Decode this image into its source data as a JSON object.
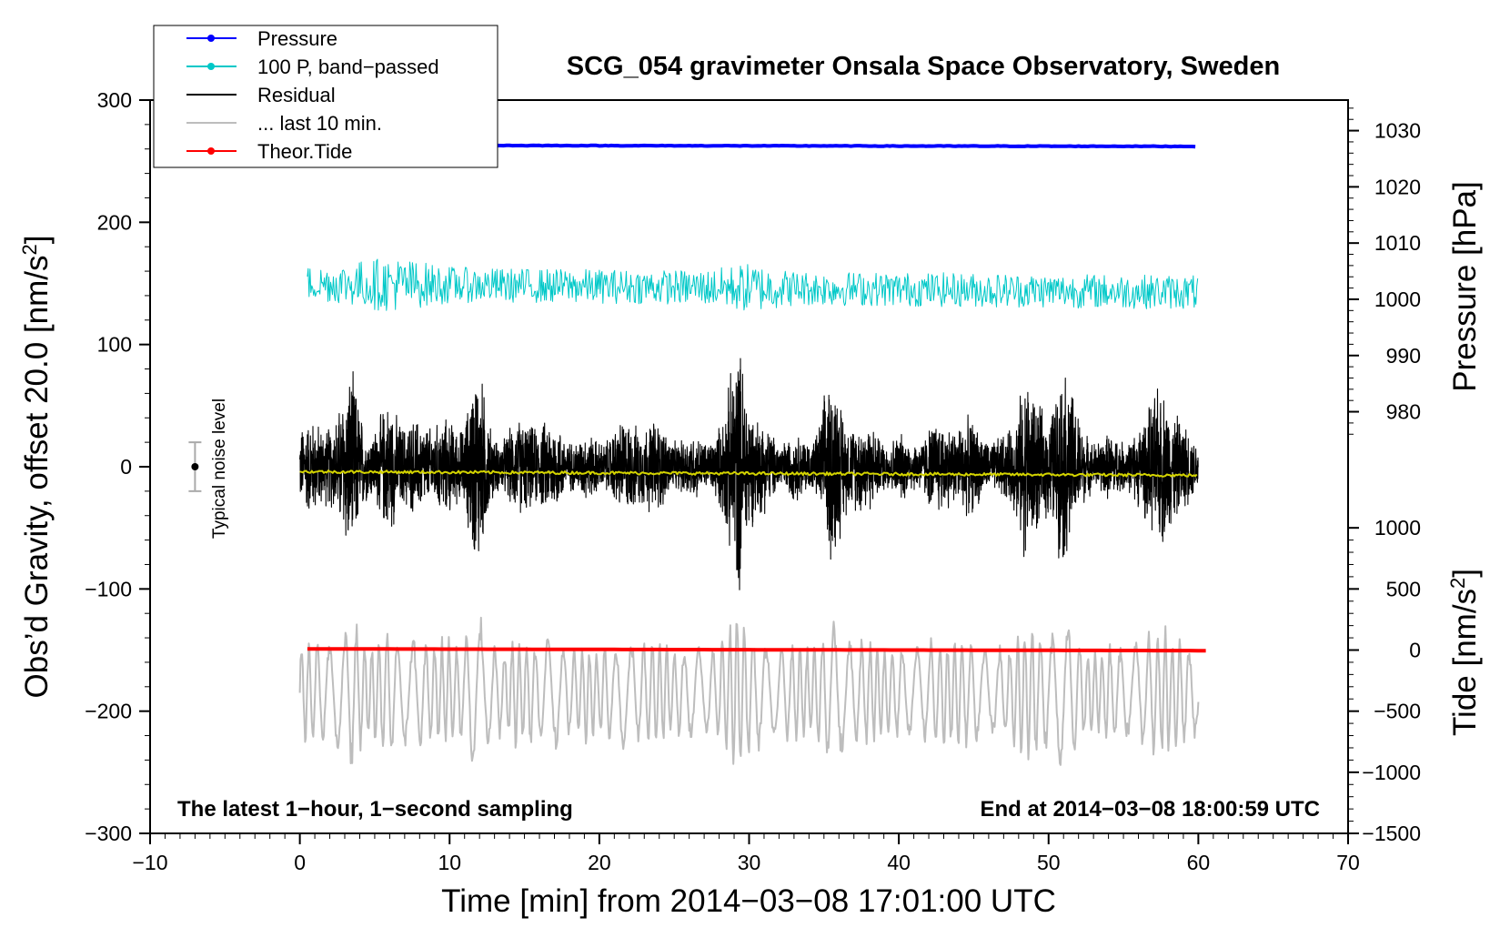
{
  "chart_data": {
    "type": "line",
    "title": "SCG_054 gravimeter Onsala Space Observatory, Sweden",
    "xlabel": "Time [min] from 2014−03−08 17:01:00 UTC",
    "ylabel_left": "Obs’d Gravity, offset 20.0 [nm/s²]",
    "ylabel_left_parts": {
      "main": "Obs’d Gravity, offset 20.0 [nm/s",
      "sup": "2",
      "end": "]"
    },
    "ylabel_right_pressure": "Pressure [hPa]",
    "ylabel_right_tide": "Tide [nm/s²]",
    "ylabel_right_tide_parts": {
      "main": "Tide [nm/s",
      "sup": "2",
      "end": "]"
    },
    "xlim": [
      -10,
      70
    ],
    "ylim": [
      -300,
      300
    ],
    "x_ticks": [
      -10,
      0,
      10,
      20,
      30,
      40,
      50,
      60,
      70
    ],
    "x_tick_labels": [
      "−10",
      "0",
      "10",
      "20",
      "30",
      "40",
      "50",
      "60",
      "70"
    ],
    "y_ticks": [
      300,
      200,
      100,
      0,
      -100,
      -200,
      -300
    ],
    "y_tick_labels": [
      "300",
      "200",
      "100",
      "0",
      "−100",
      "−200",
      "−300"
    ],
    "pressure_axis": {
      "ticks": [
        1030,
        1020,
        1010,
        1000,
        990,
        980
      ],
      "tick_labels": [
        "1030",
        "1020",
        "1010",
        "1000",
        "990",
        "980"
      ],
      "left_value_at_1030": 275,
      "left_units_per_hpa": 4.6
    },
    "tide_axis": {
      "ticks": [
        1000,
        500,
        0,
        -500,
        -1000,
        -1500
      ],
      "tick_labels": [
        "1000",
        "500",
        "0",
        "−500",
        "−1000",
        "−1500"
      ],
      "left_value_at_0": -150,
      "left_units_per_tide": 0.1
    },
    "legend": [
      {
        "label": "Pressure",
        "color": "#0000ff",
        "marker": true
      },
      {
        "label": "100 P, band−passed",
        "color": "#00c8c8",
        "marker": true
      },
      {
        "label": "Residual",
        "color": "#000000",
        "marker": false
      },
      {
        "label": "... last 10 min.",
        "color": "#bdbdbd",
        "marker": false
      },
      {
        "label": "Theor.Tide",
        "color": "#ff0000",
        "marker": true
      }
    ],
    "series": [
      {
        "name": "Pressure",
        "color": "#0000ff",
        "x_range": [
          0,
          60
        ],
        "values_hpa_start": 1027.4,
        "values_hpa_end": 1027.2
      },
      {
        "name": "100 P, band−passed",
        "color": "#00c8c8",
        "x_range": [
          0.5,
          60
        ],
        "center": 150,
        "amplitude": 20
      },
      {
        "name": "Residual",
        "color": "#000000",
        "x_range": [
          0,
          60
        ],
        "center": 0,
        "amplitude": 60
      },
      {
        "name": "Residual smoothed",
        "color": "#d4d400",
        "x_range": [
          0,
          60
        ],
        "center_start": -4,
        "center_end": -7
      },
      {
        "name": "... last 10 min.",
        "color": "#bdbdbd",
        "x_range": [
          0,
          60
        ],
        "center": -185,
        "amplitude": 45
      },
      {
        "name": "Theor.Tide",
        "color": "#ff0000",
        "x_range": [
          0.5,
          60.5
        ],
        "values_start": 10,
        "values_end": -5
      }
    ],
    "noise_bar": {
      "x": -7,
      "center": 0,
      "half_range": 20,
      "label": "Typical noise level"
    },
    "annotation_left": "The latest 1−hour, 1−second sampling",
    "annotation_right": "End at 2014−03−08 18:00:59 UTC"
  }
}
